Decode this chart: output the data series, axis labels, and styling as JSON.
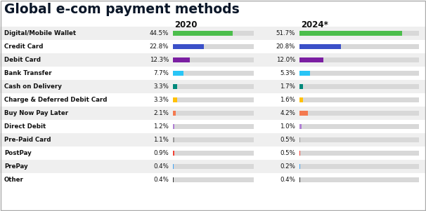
{
  "title": "Global e-com payment methods",
  "categories": [
    "Digital/Mobile Wallet",
    "Credit Card",
    "Debit Card",
    "Bank Transfer",
    "Cash on Delivery",
    "Charge & Deferred Debit Card",
    "Buy Now Pay Later",
    "Direct Debit",
    "Pre-Paid Card",
    "PostPay",
    "PrePay",
    "Other"
  ],
  "values_2020": [
    44.5,
    22.8,
    12.3,
    7.7,
    3.3,
    3.3,
    2.1,
    1.2,
    1.1,
    0.9,
    0.4,
    0.4
  ],
  "values_2024": [
    51.7,
    20.8,
    12.0,
    5.3,
    1.7,
    1.6,
    4.2,
    1.0,
    0.5,
    0.5,
    0.2,
    0.4
  ],
  "bar_colors": [
    "#4cbe4c",
    "#3b50c8",
    "#7b1fa2",
    "#29c5f6",
    "#00897b",
    "#ffc107",
    "#f47a50",
    "#b07fd4",
    "#999999",
    "#f44336",
    "#42a5f5",
    "#333333"
  ],
  "col1_header": "2020",
  "col2_header": "2024*",
  "max_bar": 60,
  "bg_color": "#ffffff",
  "bar_bg_color": "#d8d8d8",
  "row_alt_color": "#efefef",
  "title_color": "#0a1628",
  "text_color": "#111111"
}
